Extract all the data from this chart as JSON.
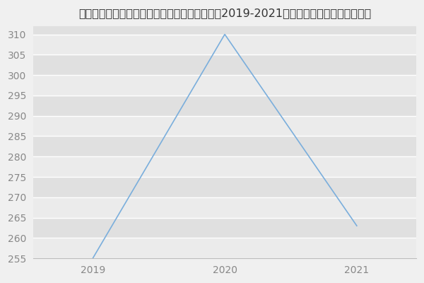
{
  "title": "福建农林大学艺术学院、园林学院风景园林学（2019-2021历年复试）研究生录取分数线",
  "x_values": [
    2019,
    2020,
    2021
  ],
  "y_values": [
    255,
    310,
    263
  ],
  "x_labels": [
    "2019",
    "2020",
    "2021"
  ],
  "line_color": "#7aaedc",
  "ylim_min": 255,
  "ylim_max": 312,
  "yticks": [
    255,
    260,
    265,
    270,
    275,
    280,
    285,
    290,
    295,
    300,
    305,
    310
  ],
  "bg_color": "#f0f0f0",
  "band_light": "#ebebeb",
  "band_dark": "#e0e0e0",
  "grid_color": "#ffffff",
  "tick_color": "#888888",
  "title_color": "#333333",
  "title_fontsize": 11.5,
  "tick_fontsize": 10
}
